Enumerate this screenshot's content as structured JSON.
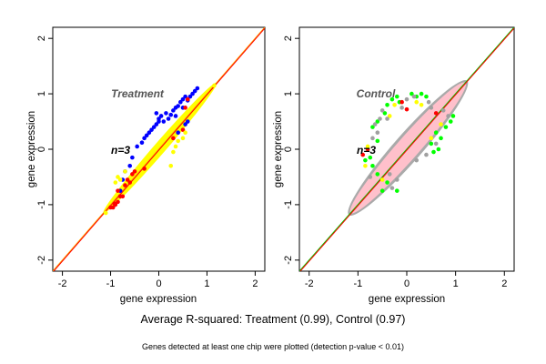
{
  "summary_line": "Average R-squared: Treatment (0.99), Control (0.97)",
  "footnote": "Genes detected at least one chip were plotted (detection p-value < 0.01)",
  "chart_data": [
    {
      "type": "scatter",
      "title": "Treatment",
      "annotation": "n=3",
      "xlabel": "gene expression",
      "ylabel": "gene expression",
      "xlim": [
        -2.2,
        2.2
      ],
      "ylim": [
        -2.2,
        2.2
      ],
      "xticks": [
        -2,
        -1,
        0,
        1,
        2
      ],
      "yticks": [
        -2,
        -1,
        0,
        1,
        2
      ],
      "grid": false,
      "colors": {
        "cloud": "#ffff00",
        "outlier_high": "#0000ff",
        "outlier_mid": "#ff0000",
        "diag_line_1": "#ff0000",
        "diag_line_2": "#ffa500"
      },
      "cloud_ellipse": {
        "x_range": [
          -1.15,
          1.2
        ],
        "half_width": 0.17
      },
      "series": [
        {
          "color": "#0000ff",
          "points": [
            [
              -0.05,
              0.45
            ],
            [
              0.0,
              0.55
            ],
            [
              0.05,
              0.6
            ],
            [
              0.1,
              0.5
            ],
            [
              0.15,
              0.65
            ],
            [
              0.2,
              0.55
            ],
            [
              -0.15,
              0.35
            ],
            [
              -0.1,
              0.4
            ],
            [
              -0.2,
              0.3
            ],
            [
              -0.3,
              0.2
            ],
            [
              -0.25,
              0.25
            ],
            [
              0.25,
              0.62
            ],
            [
              0.3,
              0.7
            ],
            [
              -0.35,
              0.12
            ],
            [
              0.35,
              0.75
            ],
            [
              -0.45,
              0.05
            ],
            [
              0.4,
              0.78
            ],
            [
              0.45,
              0.85
            ],
            [
              0.5,
              0.9
            ],
            [
              0.55,
              0.95
            ],
            [
              -0.55,
              -0.15
            ],
            [
              -0.6,
              -0.3
            ],
            [
              -0.7,
              -0.4
            ],
            [
              -0.75,
              -0.55
            ],
            [
              -0.8,
              -0.75
            ],
            [
              0.6,
              0.88
            ],
            [
              0.65,
              0.95
            ],
            [
              0.7,
              1.0
            ],
            [
              0.75,
              1.05
            ],
            [
              0.8,
              1.1
            ],
            [
              -0.05,
              0.65
            ],
            [
              0.0,
              0.5
            ],
            [
              0.35,
              0.6
            ],
            [
              0.5,
              0.75
            ],
            [
              0.55,
              0.45
            ],
            [
              0.6,
              0.5
            ],
            [
              0.4,
              0.3
            ]
          ]
        },
        {
          "color": "#ff0000",
          "points": [
            [
              -0.6,
              -0.6
            ],
            [
              -0.7,
              -0.65
            ],
            [
              -0.75,
              -0.85
            ],
            [
              -0.85,
              -0.95
            ],
            [
              -0.95,
              -1.05
            ],
            [
              -0.5,
              -0.4
            ],
            [
              -0.55,
              -0.45
            ],
            [
              -0.65,
              -0.55
            ],
            [
              -0.9,
              -1.0
            ],
            [
              -0.8,
              -0.85
            ],
            [
              -1.0,
              -1.05
            ],
            [
              -0.3,
              -0.35
            ],
            [
              0.3,
              0.2
            ],
            [
              0.5,
              0.35
            ],
            [
              -0.85,
              -0.75
            ],
            [
              -0.92,
              -0.98
            ],
            [
              0.55,
              0.75
            ],
            [
              0.6,
              0.9
            ]
          ]
        },
        {
          "color": "#ffff00",
          "points": [
            [
              -0.85,
              -0.5
            ],
            [
              -0.8,
              -0.55
            ],
            [
              -0.7,
              -0.4
            ],
            [
              -0.9,
              -0.6
            ],
            [
              0.4,
              0.15
            ],
            [
              0.5,
              0.2
            ],
            [
              0.3,
              -0.05
            ],
            [
              0.25,
              -0.3
            ],
            [
              0.35,
              0.05
            ],
            [
              0.55,
              0.3
            ],
            [
              -1.1,
              -1.15
            ],
            [
              1.15,
              1.15
            ]
          ]
        }
      ]
    },
    {
      "type": "scatter",
      "title": "Control",
      "annotation": "n=3",
      "xlabel": "gene expression",
      "ylabel": "gene expression",
      "xlim": [
        -2.2,
        2.2
      ],
      "ylim": [
        -2.2,
        2.2
      ],
      "xticks": [
        -2,
        -1,
        0,
        1,
        2
      ],
      "yticks": [
        -2,
        -1,
        0,
        1,
        2
      ],
      "grid": false,
      "colors": {
        "cloud": "#ffc0cb",
        "cloud_edge": "#aaaaaa",
        "outlier_1": "#00ff00",
        "outlier_2": "#ff0000",
        "outlier_3": "#ffff00",
        "outlier_4": "#a0a0a0",
        "diag_line_1": "#ff0000",
        "diag_line_2": "#00cc00"
      },
      "cloud_ellipse": {
        "x_range": [
          -1.15,
          1.2
        ],
        "half_width": 0.32
      },
      "series": [
        {
          "color": "#00ff00",
          "points": [
            [
              -0.4,
              0.8
            ],
            [
              -0.3,
              0.9
            ],
            [
              -0.2,
              0.95
            ],
            [
              0.1,
              1.0
            ],
            [
              0.2,
              0.95
            ],
            [
              0.3,
              1.0
            ],
            [
              -0.6,
              0.5
            ],
            [
              -0.7,
              0.4
            ],
            [
              0.6,
              0.3
            ],
            [
              0.7,
              0.2
            ],
            [
              0.8,
              0.4
            ],
            [
              -0.45,
              0.65
            ],
            [
              -0.6,
              -0.45
            ],
            [
              -0.5,
              -0.75
            ],
            [
              -0.7,
              -0.3
            ],
            [
              -0.75,
              -0.15
            ],
            [
              -0.6,
              0.15
            ],
            [
              -0.85,
              -0.2
            ],
            [
              0.55,
              -0.05
            ],
            [
              0.65,
              0.0
            ],
            [
              0.5,
              0.1
            ],
            [
              -0.2,
              -0.75
            ],
            [
              -0.4,
              -0.6
            ],
            [
              0.9,
              0.5
            ],
            [
              0.95,
              0.6
            ],
            [
              0.4,
              0.95
            ],
            [
              -0.15,
              0.85
            ]
          ]
        },
        {
          "color": "#ff0000",
          "points": [
            [
              -0.1,
              0.85
            ],
            [
              0.0,
              0.72
            ],
            [
              -0.8,
              0.0
            ],
            [
              0.6,
              0.65
            ],
            [
              -0.9,
              -0.1
            ]
          ]
        },
        {
          "color": "#ffff00",
          "points": [
            [
              -0.25,
              0.8
            ],
            [
              -0.35,
              0.6
            ],
            [
              -0.8,
              0.05
            ],
            [
              -0.85,
              -0.3
            ],
            [
              0.7,
              0.45
            ],
            [
              0.5,
              0.2
            ],
            [
              -0.5,
              -0.55
            ],
            [
              0.2,
              0.85
            ],
            [
              0.3,
              0.8
            ]
          ]
        },
        {
          "color": "#a0a0a0",
          "points": [
            [
              -0.5,
              0.7
            ],
            [
              -0.55,
              0.55
            ],
            [
              -0.6,
              0.3
            ],
            [
              -0.65,
              0.45
            ],
            [
              -0.7,
              0.2
            ],
            [
              0.0,
              0.9
            ],
            [
              0.45,
              0.85
            ],
            [
              0.5,
              0.75
            ],
            [
              -0.3,
              -0.7
            ],
            [
              -0.35,
              -0.45
            ],
            [
              0.6,
              0.1
            ],
            [
              0.4,
              -0.1
            ],
            [
              -0.1,
              0.75
            ],
            [
              -0.4,
              0.55
            ],
            [
              0.85,
              0.6
            ],
            [
              0.75,
              0.7
            ],
            [
              -0.2,
              -0.55
            ],
            [
              0.2,
              -0.2
            ],
            [
              0.15,
              0.95
            ],
            [
              -0.75,
              -0.5
            ]
          ]
        }
      ]
    }
  ]
}
